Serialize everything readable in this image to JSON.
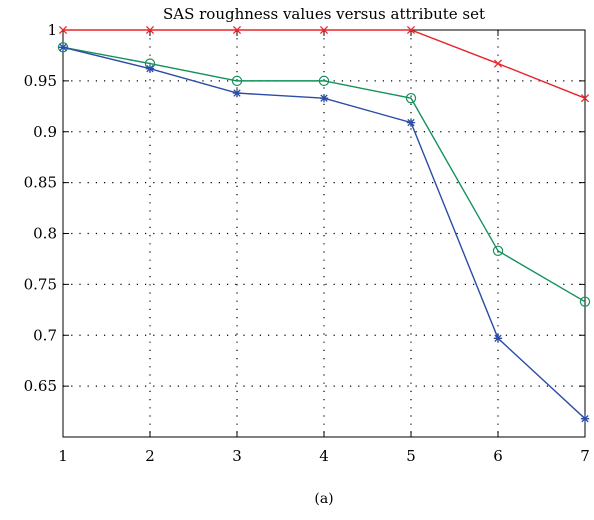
{
  "chart_data": {
    "type": "line",
    "title": "SAS roughness values versus attribute set",
    "caption": "(a)",
    "xlabel": "",
    "ylabel": "",
    "x": [
      1,
      2,
      3,
      4,
      5,
      6,
      7
    ],
    "xticks": [
      "1",
      "2",
      "3",
      "4",
      "5",
      "6",
      "7"
    ],
    "yticks": [
      "0.65",
      "0.7",
      "0.75",
      "0.8",
      "0.85",
      "0.9",
      "0.95",
      "1"
    ],
    "xlim": [
      1,
      7
    ],
    "ylim": [
      0.6,
      1.0
    ],
    "grid": true,
    "series": [
      {
        "color": "#e8262c",
        "marker": "x",
        "values": [
          1.0,
          1.0,
          1.0,
          1.0,
          1.0,
          0.967,
          0.933
        ]
      },
      {
        "color": "#12915a",
        "marker": "o",
        "values": [
          0.983,
          0.967,
          0.95,
          0.95,
          0.933,
          0.783,
          0.733
        ]
      },
      {
        "color": "#2c4da6",
        "marker": "*",
        "values": [
          0.983,
          0.962,
          0.938,
          0.933,
          0.909,
          0.697,
          0.618
        ]
      }
    ]
  }
}
